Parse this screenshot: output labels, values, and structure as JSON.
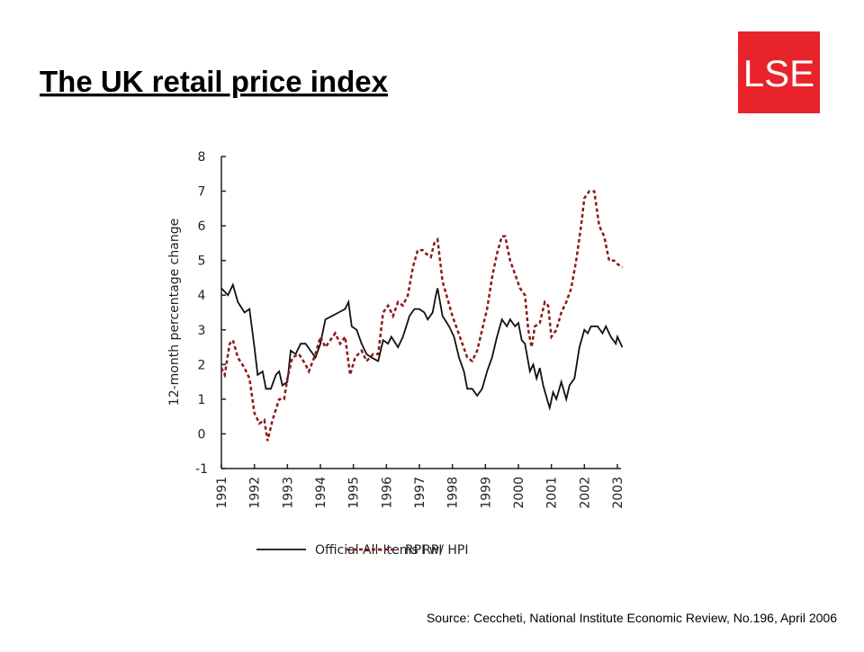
{
  "title": "The UK retail price index",
  "logo": "LSE",
  "source": "Source: Ceccheti, National Institute Economic Review, No.196, April 2006",
  "chart_data": {
    "type": "line",
    "y_label": "12-month percentage change",
    "xlim": [
      1991,
      2003.15
    ],
    "xticks": [
      1991,
      1992,
      1993,
      1994,
      1995,
      1996,
      1997,
      1998,
      1999,
      2000,
      2001,
      2002,
      2003
    ],
    "ylim": [
      -1,
      8
    ],
    "yticks": [
      -1,
      0,
      1,
      2,
      3,
      4,
      5,
      6,
      7,
      8
    ],
    "series": [
      {
        "name": "Official All-Items RPI",
        "color": "#111111",
        "dash": "solid",
        "x": [
          1991.0,
          1991.2,
          1991.35,
          1991.5,
          1991.7,
          1991.85,
          1992.0,
          1992.1,
          1992.25,
          1992.35,
          1992.5,
          1992.65,
          1992.75,
          1992.85,
          1993.0,
          1993.1,
          1993.25,
          1993.4,
          1993.55,
          1993.7,
          1993.85,
          1994.0,
          1994.15,
          1994.35,
          1994.55,
          1994.75,
          1994.85,
          1994.95,
          1995.1,
          1995.25,
          1995.4,
          1995.55,
          1995.75,
          1995.9,
          1996.05,
          1996.15,
          1996.35,
          1996.5,
          1996.7,
          1996.85,
          1997.0,
          1997.15,
          1997.25,
          1997.4,
          1997.5,
          1997.55,
          1997.7,
          1997.9,
          1998.05,
          1998.2,
          1998.35,
          1998.45,
          1998.6,
          1998.75,
          1998.9,
          1999.05,
          1999.2,
          1999.35,
          1999.5,
          1999.65,
          1999.75,
          1999.9,
          2000.0,
          2000.1,
          2000.2,
          2000.35,
          2000.45,
          2000.55,
          2000.65,
          2000.75,
          2000.9,
          2000.95,
          2001.05,
          2001.15,
          2001.3,
          2001.45,
          2001.55,
          2001.7,
          2001.85,
          2002.0,
          2002.1,
          2002.2,
          2002.4,
          2002.55,
          2002.65,
          2002.8,
          2002.95,
          2003.0,
          2003.15
        ],
        "values": [
          4.2,
          4.0,
          4.3,
          3.8,
          3.5,
          3.6,
          2.5,
          1.7,
          1.8,
          1.3,
          1.3,
          1.7,
          1.8,
          1.4,
          1.5,
          2.4,
          2.3,
          2.6,
          2.6,
          2.4,
          2.2,
          2.6,
          3.3,
          3.4,
          3.5,
          3.6,
          3.8,
          3.1,
          3.0,
          2.6,
          2.3,
          2.2,
          2.1,
          2.7,
          2.6,
          2.8,
          2.5,
          2.8,
          3.4,
          3.6,
          3.6,
          3.5,
          3.3,
          3.5,
          4.0,
          4.2,
          3.4,
          3.1,
          2.8,
          2.2,
          1.8,
          1.3,
          1.3,
          1.1,
          1.3,
          1.8,
          2.2,
          2.8,
          3.3,
          3.1,
          3.3,
          3.1,
          3.2,
          2.7,
          2.6,
          1.8,
          2.0,
          1.6,
          1.9,
          1.4,
          0.9,
          0.75,
          1.2,
          1.0,
          1.5,
          1.0,
          1.4,
          1.6,
          2.5,
          3.0,
          2.9,
          3.1,
          3.1,
          2.9,
          3.1,
          2.8,
          2.6,
          2.8,
          2.5
        ]
      },
      {
        "name": "RPI w/ HPI",
        "color": "#8b1a1a",
        "dash": "dashed",
        "x": [
          1991.0,
          1991.1,
          1991.25,
          1991.35,
          1991.5,
          1991.7,
          1991.85,
          1992.0,
          1992.15,
          1992.3,
          1992.4,
          1992.55,
          1992.75,
          1992.9,
          1993.0,
          1993.15,
          1993.35,
          1993.55,
          1993.65,
          1993.85,
          1994.0,
          1994.15,
          1994.3,
          1994.45,
          1994.6,
          1994.75,
          1994.9,
          1995.05,
          1995.25,
          1995.4,
          1995.6,
          1995.75,
          1995.9,
          1996.05,
          1996.2,
          1996.35,
          1996.5,
          1996.65,
          1996.8,
          1996.95,
          1997.1,
          1997.2,
          1997.35,
          1997.45,
          1997.55,
          1997.7,
          1997.85,
          1998.0,
          1998.15,
          1998.3,
          1998.45,
          1998.6,
          1998.75,
          1998.9,
          1999.05,
          1999.2,
          1999.35,
          1999.5,
          1999.6,
          1999.75,
          1999.9,
          2000.05,
          2000.2,
          2000.3,
          2000.4,
          2000.5,
          2000.65,
          2000.8,
          2000.9,
          2001.0,
          2001.15,
          2001.3,
          2001.45,
          2001.6,
          2001.75,
          2001.9,
          2002.0,
          2002.15,
          2002.3,
          2002.45,
          2002.6,
          2002.75,
          2002.9,
          2003.0,
          2003.15
        ],
        "values": [
          1.9,
          1.7,
          2.6,
          2.7,
          2.2,
          1.9,
          1.6,
          0.6,
          0.3,
          0.4,
          -0.2,
          0.4,
          1.0,
          1.0,
          1.6,
          2.2,
          2.3,
          2.0,
          1.8,
          2.3,
          2.8,
          2.5,
          2.7,
          2.9,
          2.6,
          2.8,
          1.7,
          2.2,
          2.4,
          2.1,
          2.3,
          2.3,
          3.5,
          3.7,
          3.4,
          3.8,
          3.7,
          4.0,
          4.8,
          5.3,
          5.3,
          5.2,
          5.1,
          5.5,
          5.6,
          4.4,
          3.9,
          3.4,
          3.0,
          2.6,
          2.2,
          2.1,
          2.4,
          3.0,
          3.6,
          4.5,
          5.2,
          5.7,
          5.7,
          5.0,
          4.6,
          4.2,
          4.0,
          3.0,
          2.5,
          3.1,
          3.2,
          3.8,
          3.7,
          2.8,
          3.0,
          3.5,
          3.8,
          4.2,
          5.0,
          6.0,
          6.8,
          7.0,
          7.0,
          6.0,
          5.7,
          5.0,
          5.0,
          4.9,
          4.8
        ]
      }
    ]
  }
}
